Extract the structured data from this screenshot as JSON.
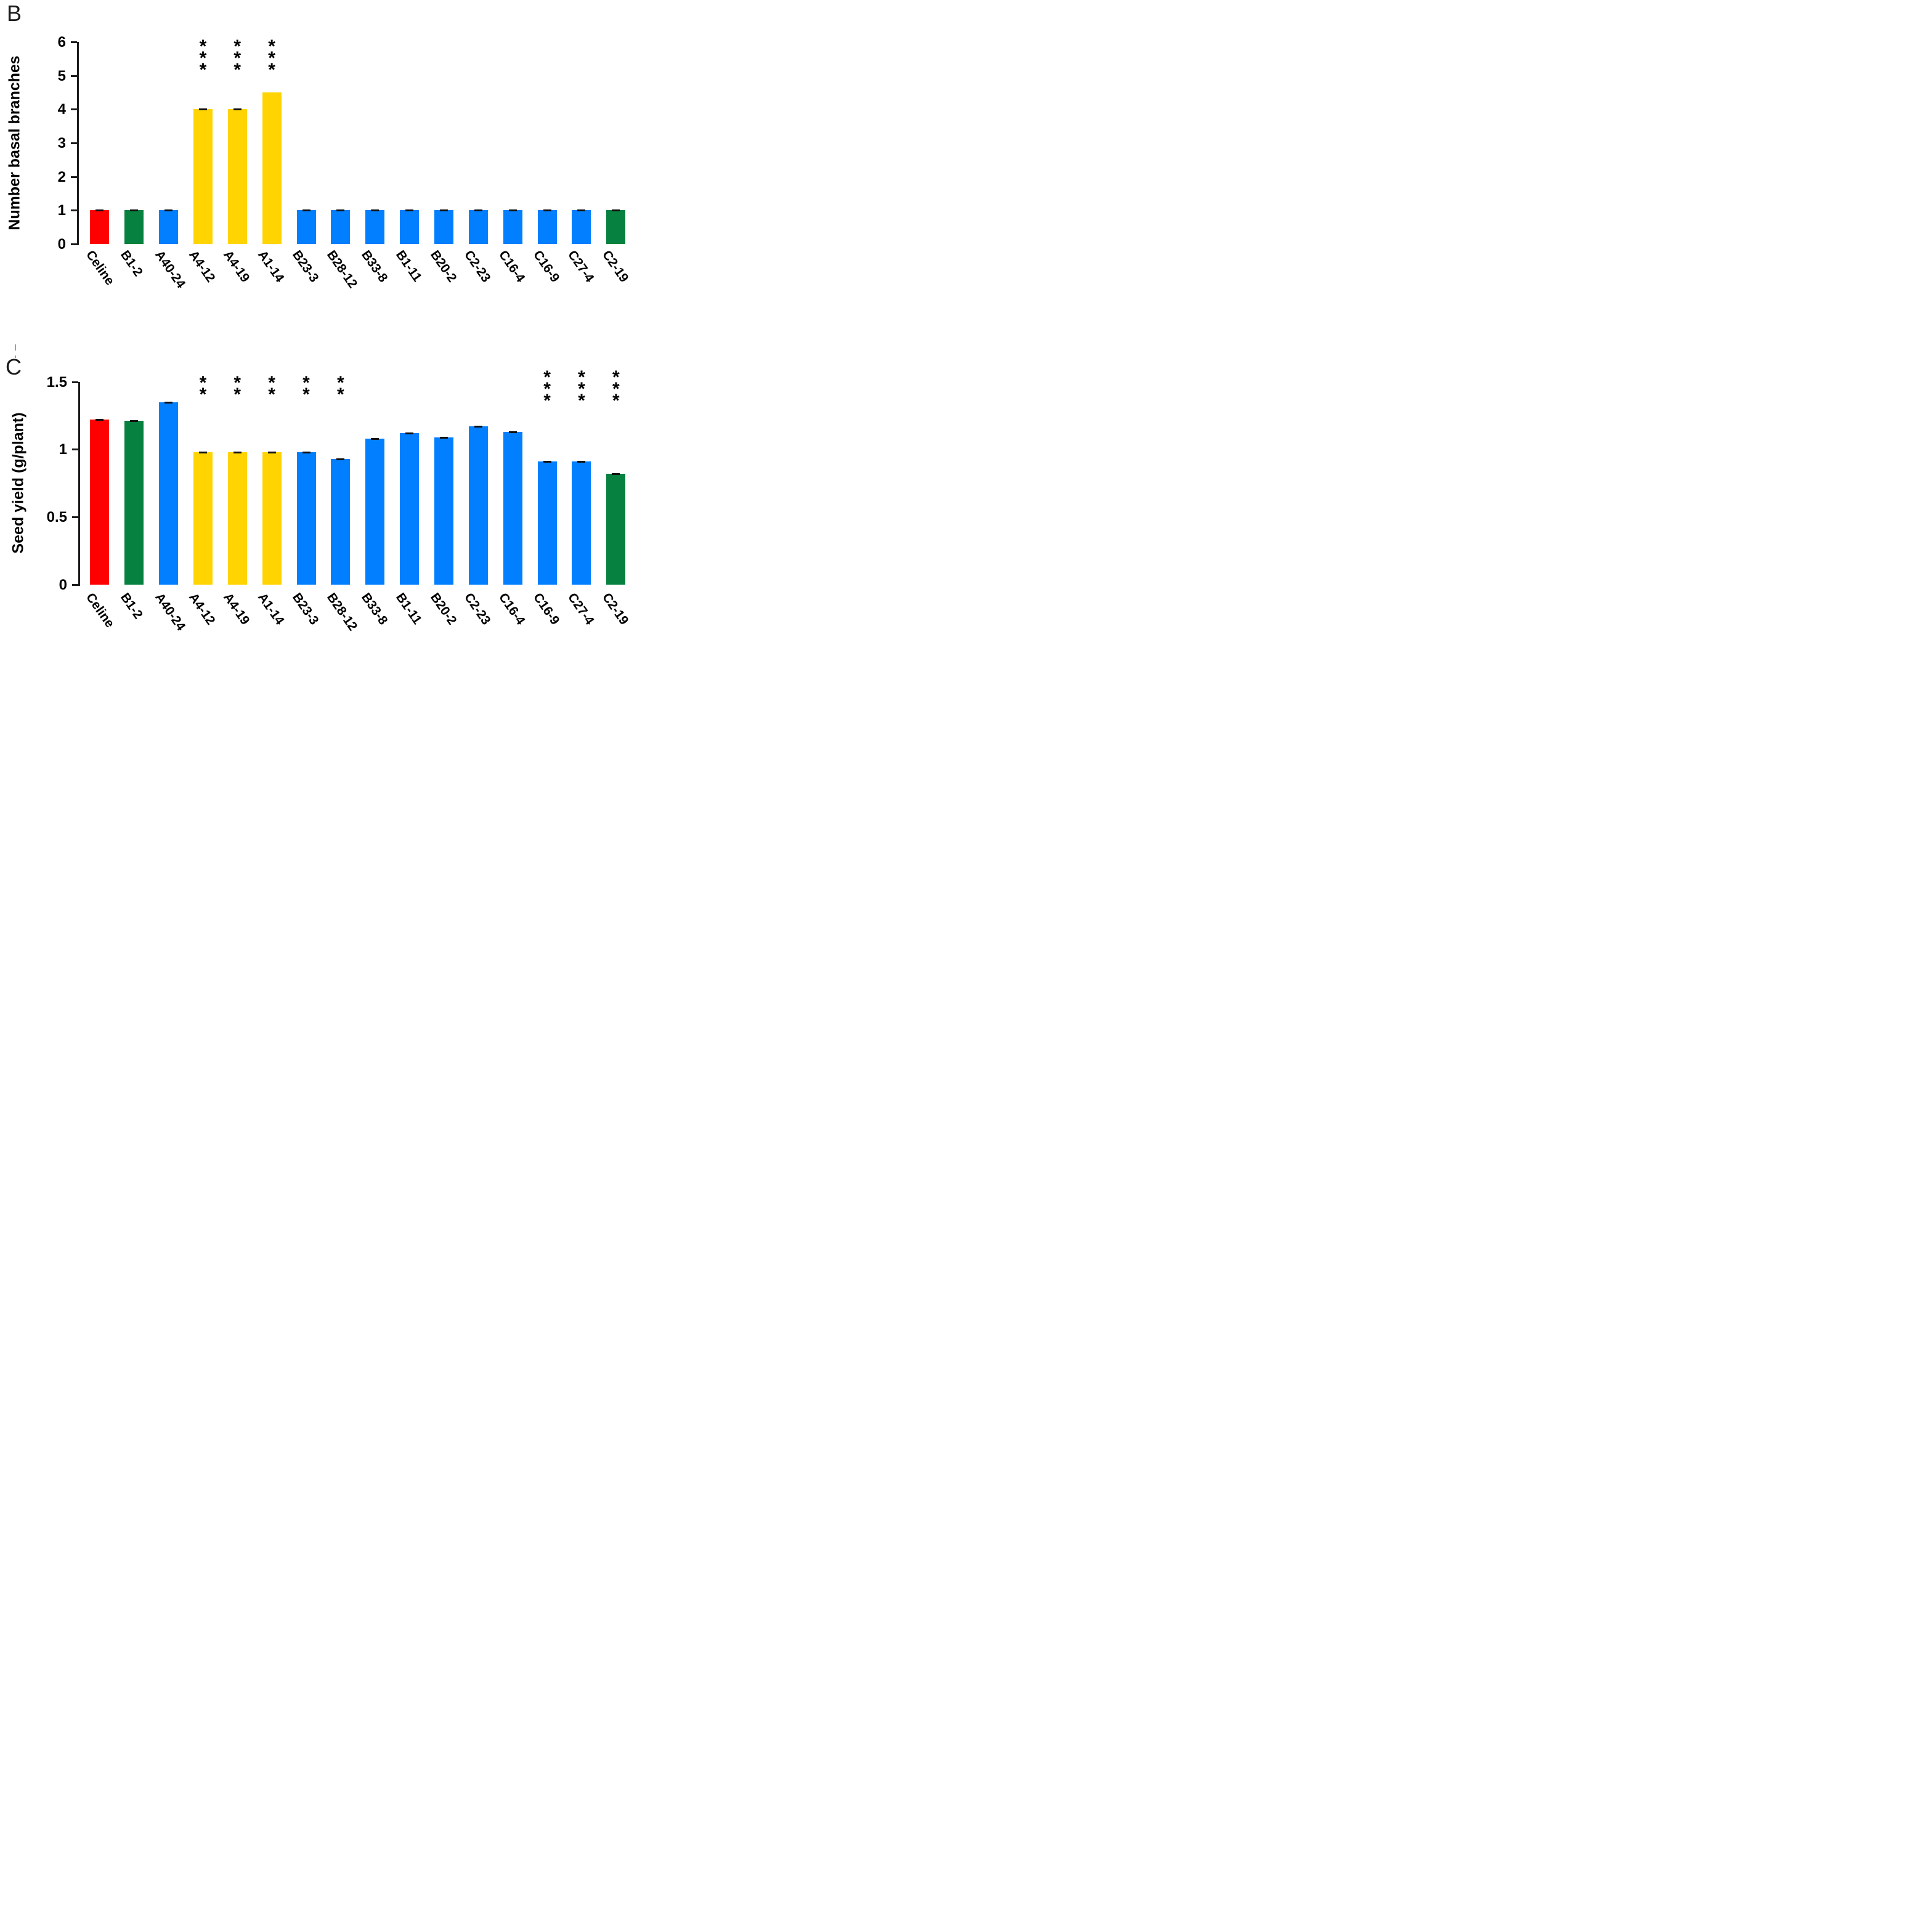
{
  "figure": {
    "panels": [
      {
        "letter": "B"
      },
      {
        "letter": "C"
      }
    ]
  },
  "palette": {
    "red": "#fe0000",
    "green": "#06813f",
    "blue": "#017ffe",
    "yellow": "#ffd400",
    "axis": "#1c1c1c",
    "error_cap": "#111111"
  },
  "chart_data": [
    {
      "type": "bar",
      "panel": "B",
      "title": "",
      "xlabel": "",
      "ylabel": "Number basal branches",
      "ylim": [
        0,
        6
      ],
      "yticks": [
        {
          "v": 0,
          "label": "0"
        },
        {
          "v": 1,
          "label": "1"
        },
        {
          "v": 2,
          "label": "2"
        },
        {
          "v": 3,
          "label": "3"
        },
        {
          "v": 4,
          "label": "4"
        },
        {
          "v": 5,
          "label": "5"
        },
        {
          "v": 6,
          "label": "6"
        }
      ],
      "grid": false,
      "legend": "none",
      "categories": [
        "Celine",
        "B1-2",
        "A40-24",
        "A4-12",
        "A4-19",
        "A1-14",
        "B23-3",
        "B28-12",
        "B33-8",
        "B1-11",
        "B20-2",
        "C2-23",
        "C16-4",
        "C16-9",
        "C27-4",
        "C2-19"
      ],
      "values": [
        1,
        1,
        1,
        4,
        4,
        4.5,
        1,
        1,
        1,
        1,
        1,
        1,
        1,
        1,
        1,
        1
      ],
      "bar_colors": [
        "red",
        "green",
        "blue",
        "yellow",
        "yellow",
        "yellow",
        "blue",
        "blue",
        "blue",
        "blue",
        "blue",
        "blue",
        "blue",
        "blue",
        "blue",
        "green"
      ],
      "significance": [
        "",
        "",
        "",
        "***",
        "***",
        "***",
        "",
        "",
        "",
        "",
        "",
        "",
        "",
        "",
        "",
        ""
      ],
      "error_caps": [
        true,
        true,
        true,
        true,
        true,
        false,
        true,
        true,
        true,
        true,
        true,
        true,
        true,
        true,
        true,
        true
      ]
    },
    {
      "type": "bar",
      "panel": "C",
      "title": "",
      "xlabel": "",
      "ylabel": "Seed yield (g/plant)",
      "ylim": [
        0,
        1.5
      ],
      "yticks": [
        {
          "v": 0,
          "label": "0"
        },
        {
          "v": 0.5,
          "label": "0.5"
        },
        {
          "v": 1,
          "label": "1"
        },
        {
          "v": 1.5,
          "label": "1.5"
        }
      ],
      "grid": false,
      "legend": "none",
      "categories": [
        "Celine",
        "B1-2",
        "A40-24",
        "A4-12",
        "A4-19",
        "A1-14",
        "B23-3",
        "B28-12",
        "B33-8",
        "B1-11",
        "B20-2",
        "C2-23",
        "C16-4",
        "C16-9",
        "C27-4",
        "C2-19"
      ],
      "values": [
        1.22,
        1.21,
        1.35,
        0.98,
        0.98,
        0.98,
        0.98,
        0.93,
        1.08,
        1.12,
        1.09,
        1.17,
        1.13,
        0.91,
        0.91,
        0.82
      ],
      "bar_colors": [
        "red",
        "green",
        "blue",
        "yellow",
        "yellow",
        "yellow",
        "blue",
        "blue",
        "blue",
        "blue",
        "blue",
        "blue",
        "blue",
        "blue",
        "blue",
        "green"
      ],
      "significance": [
        "",
        "",
        "",
        "**",
        "**",
        "**",
        "**",
        "**",
        "",
        "",
        "",
        "",
        "",
        "***",
        "***",
        "***"
      ],
      "error_caps": [
        true,
        true,
        true,
        true,
        true,
        true,
        true,
        true,
        true,
        true,
        true,
        true,
        true,
        true,
        true,
        true
      ]
    }
  ]
}
